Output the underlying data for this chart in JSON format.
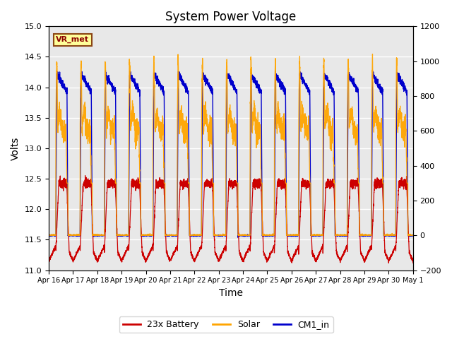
{
  "title": "System Power Voltage",
  "xlabel": "Time",
  "ylabel_left": "Volts",
  "ylabel_right": "",
  "ylim_left": [
    11.0,
    15.0
  ],
  "ylim_right": [
    -200,
    1200
  ],
  "yticks_left": [
    11.0,
    11.5,
    12.0,
    12.5,
    13.0,
    13.5,
    14.0,
    14.5,
    15.0
  ],
  "yticks_right": [
    -200,
    0,
    200,
    400,
    600,
    800,
    1000,
    1200
  ],
  "xtick_labels": [
    "Apr 16",
    "Apr 17",
    "Apr 18",
    "Apr 19",
    "Apr 20",
    "Apr 21",
    "Apr 22",
    "Apr 23",
    "Apr 24",
    "Apr 25",
    "Apr 26",
    "Apr 27",
    "Apr 28",
    "Apr 29",
    "Apr 30",
    "May 1"
  ],
  "color_battery": "#cc0000",
  "color_solar": "#ffa500",
  "color_cm1": "#0000cc",
  "legend_entries": [
    "23x Battery",
    "Solar",
    "CM1_in"
  ],
  "annotation_text": "VR_met",
  "annotation_box_color": "#ffff99",
  "annotation_box_edgecolor": "#8B4513",
  "annotation_text_color": "#8B0000",
  "plot_bg_color": "#e8e8e8",
  "n_days": 15
}
